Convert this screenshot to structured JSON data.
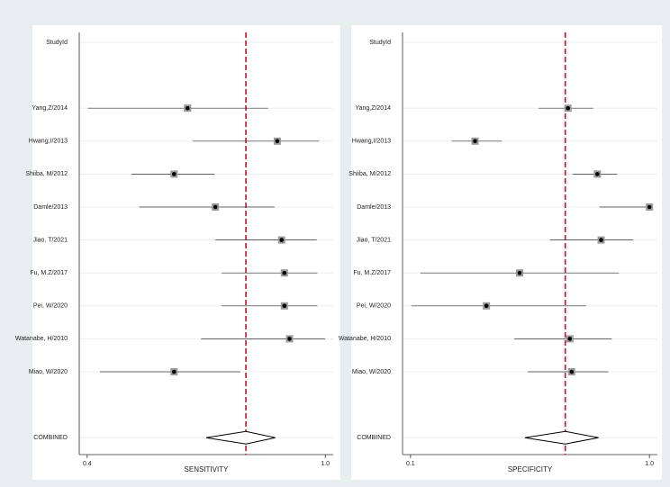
{
  "chart_data": [
    {
      "type": "forest",
      "y_header": "StudyId",
      "xlabel": "SENSITIVITY",
      "categories": [
        "Yang,Z/2014",
        "Hwang,I/2013",
        "Shiiba, M/2012",
        "Damle/2013",
        "Jiao, T/2021",
        "Fu, M.Z/2017",
        "Pei, W/2020",
        "Watanabe, H/2010",
        "Miao, W/2020"
      ],
      "values": [
        0.653,
        0.879,
        0.619,
        0.723,
        0.89,
        0.897,
        0.897,
        0.91,
        0.619
      ],
      "lower": [
        0.402,
        0.666,
        0.511,
        0.531,
        0.723,
        0.739,
        0.739,
        0.687,
        0.432
      ],
      "upper": [
        0.856,
        0.984,
        0.721,
        0.872,
        0.978,
        0.98,
        0.98,
        1.0,
        0.786
      ],
      "pooled": {
        "label": "COMBINED",
        "value": 0.8,
        "lower": 0.7,
        "upper": 0.874
      },
      "reference_line": 0.8,
      "reference_color": "#c8102e",
      "xlim": [
        0.38,
        1.02
      ],
      "xticks": [
        0.4,
        {
          "value": 1,
          "label": "1.0"
        }
      ],
      "grid": true
    },
    {
      "type": "forest",
      "y_header": "StudyId",
      "xlabel": "SPECIFICITY",
      "categories": [
        "Yang,Z/2014",
        "Hwang,I/2013",
        "Shiiba, M/2012",
        "Damle/2013",
        "Jiao, T/2021",
        "Fu, M.Z/2017",
        "Pei, W/2020",
        "Watanabe, H/2010",
        "Miao, W/2020"
      ],
      "values": [
        0.693,
        0.343,
        0.804,
        1.0,
        0.818,
        0.511,
        0.386,
        0.7,
        0.707
      ],
      "lower": [
        0.582,
        0.255,
        0.71,
        0.811,
        0.626,
        0.137,
        0.103,
        0.491,
        0.542
      ],
      "upper": [
        0.788,
        0.444,
        0.879,
        1.0,
        0.939,
        0.885,
        0.761,
        0.858,
        0.845
      ],
      "pooled": {
        "label": "COMBINED",
        "value": 0.683,
        "lower": 0.531,
        "upper": 0.808
      },
      "reference_line": 0.683,
      "reference_color": "#c8102e",
      "xlim": [
        0.07,
        1.03
      ],
      "xticks": [
        0.1,
        {
          "value": 1,
          "label": "1.0"
        }
      ],
      "grid": true
    }
  ]
}
